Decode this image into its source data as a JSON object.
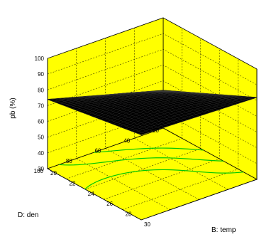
{
  "chart_data": {
    "type": "surface",
    "title": "",
    "zlabel": "pb (%)",
    "xlabel": "B: temp",
    "ylabel": "D: den",
    "zlim": [
      30,
      100
    ],
    "xlim": [
      20,
      30
    ],
    "ylim": [
      20,
      100
    ],
    "z_ticks": [
      "30",
      "40",
      "50",
      "60",
      "70",
      "80",
      "90",
      "100"
    ],
    "x_ticks": [
      "20",
      "22",
      "24",
      "26",
      "28",
      "30"
    ],
    "y_ticks": [
      "20",
      "40",
      "60",
      "80",
      "100"
    ],
    "grid": true,
    "surface_color": "#000000",
    "wall_color": "#ffff00",
    "contour_color": "#00c800",
    "surface_corners": [
      {
        "temp": 20,
        "den": 20,
        "pb": 58
      },
      {
        "temp": 30,
        "den": 20,
        "pb": 78
      },
      {
        "temp": 30,
        "den": 100,
        "pb": 88
      },
      {
        "temp": 20,
        "den": 100,
        "pb": 70
      }
    ]
  }
}
